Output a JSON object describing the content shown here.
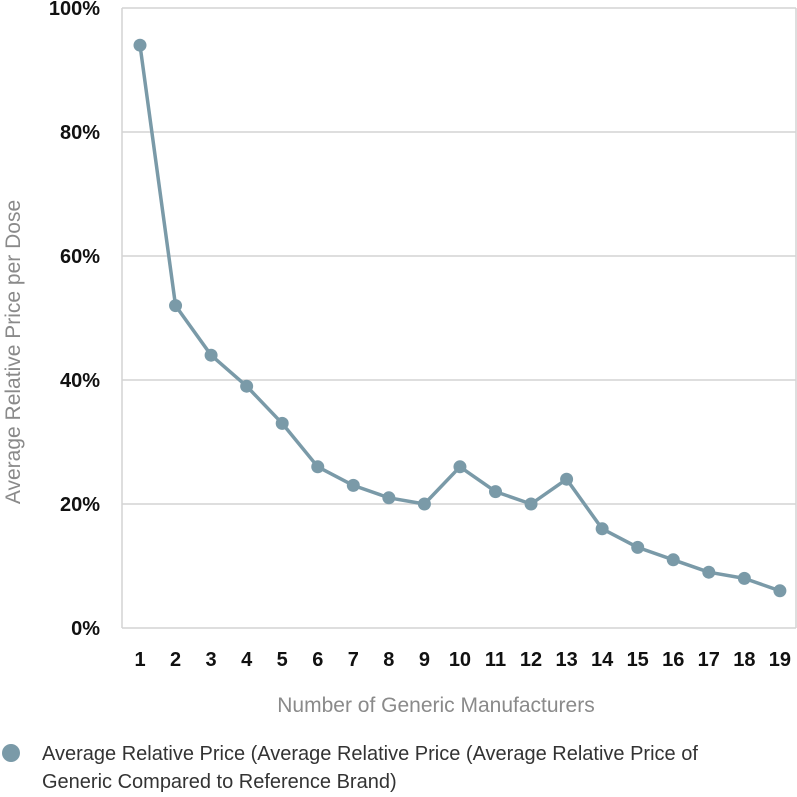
{
  "chart_data": {
    "type": "line",
    "title": "",
    "xlabel": "Number of Generic Manufacturers",
    "ylabel": "Average Relative Price per Dose",
    "x": [
      1,
      2,
      3,
      4,
      5,
      6,
      7,
      8,
      9,
      10,
      11,
      12,
      13,
      14,
      15,
      16,
      17,
      18,
      19
    ],
    "y_ticks": [
      "0%",
      "20%",
      "40%",
      "60%",
      "80%",
      "100%"
    ],
    "ylim": [
      0,
      100
    ],
    "grid": true,
    "legend_position": "bottom-left",
    "series": [
      {
        "name": "Average Relative Price (Average Relative Price (Average Relative Price of Generic Compared to Reference Brand)",
        "color": "#7a9aa8",
        "values": [
          94,
          52,
          44,
          39,
          33,
          26,
          23,
          21,
          20,
          26,
          22,
          20,
          24,
          16,
          13,
          11,
          9,
          8,
          6
        ]
      }
    ]
  }
}
